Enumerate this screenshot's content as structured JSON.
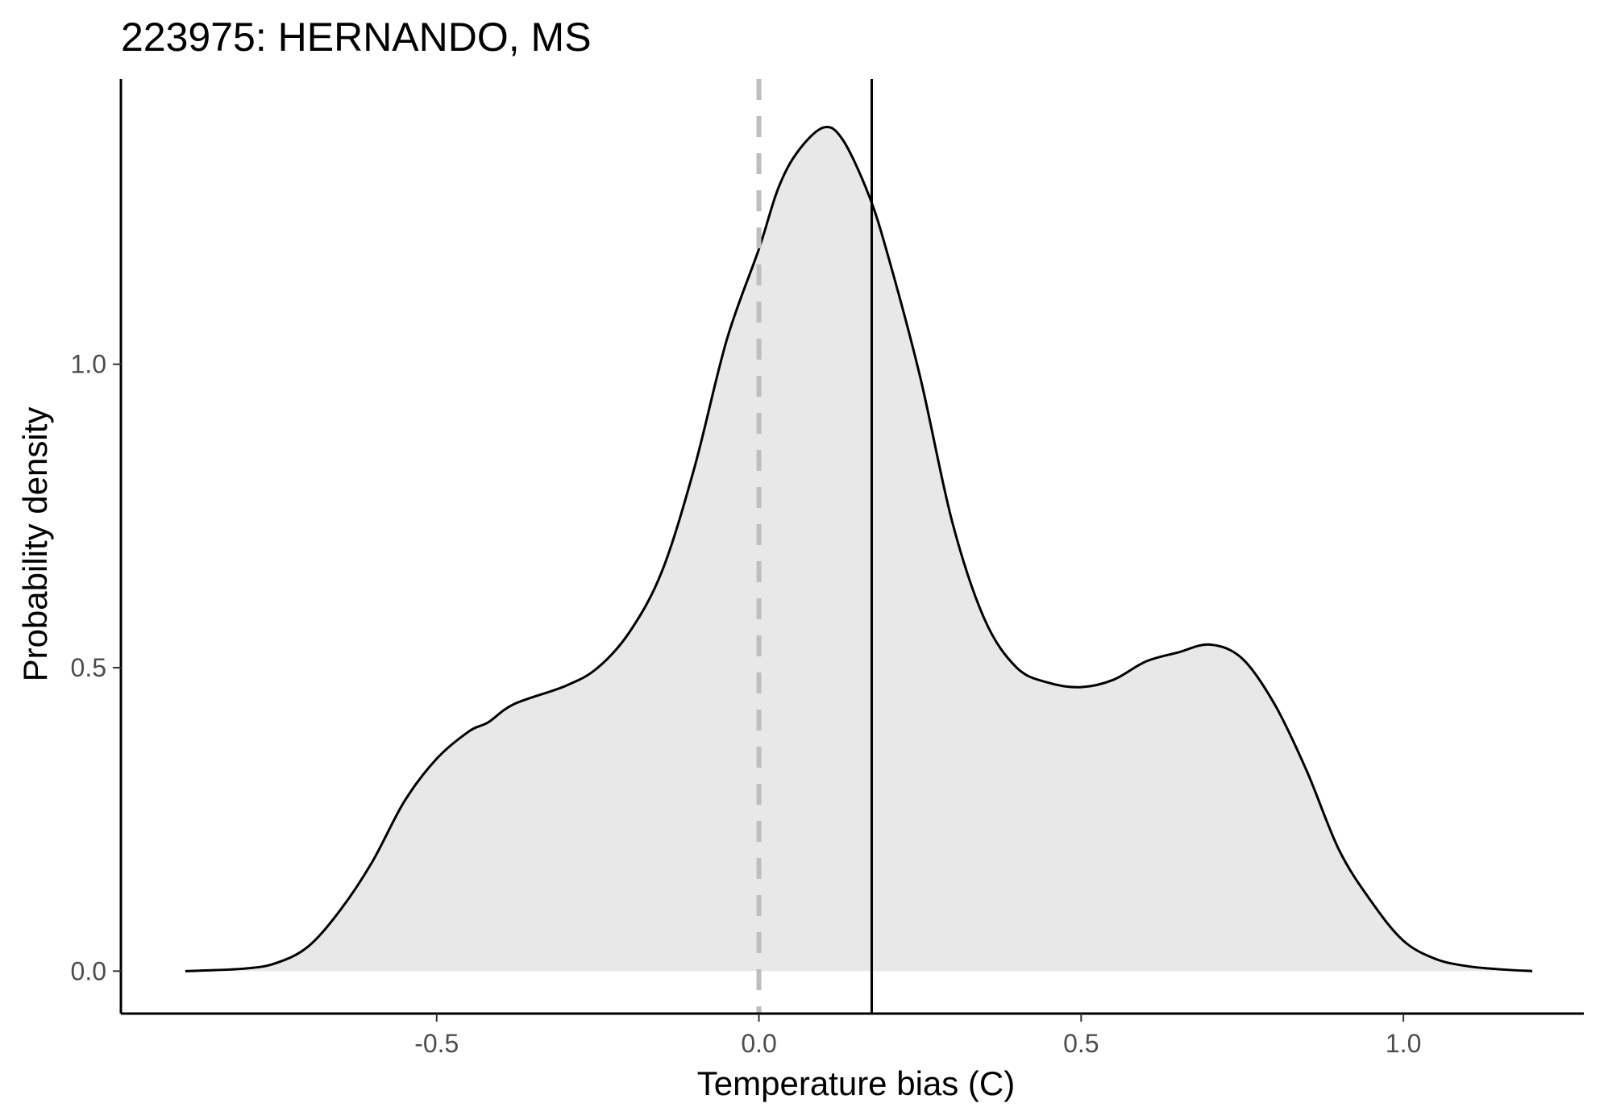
{
  "chart_data": {
    "type": "area",
    "title": "223975: HERNANDO, MS",
    "xlabel": "Temperature bias (C)",
    "ylabel": "Probability density",
    "xlim": [
      -0.99,
      1.28
    ],
    "ylim": [
      -0.07,
      1.47
    ],
    "x_ticks": [
      -0.5,
      0.0,
      0.5,
      1.0
    ],
    "x_tick_labels": [
      "-0.5",
      "0.0",
      "0.5",
      "1.0"
    ],
    "y_ticks": [
      0.0,
      0.5,
      1.0
    ],
    "y_tick_labels": [
      "0.0",
      "0.5",
      "1.0"
    ],
    "grid": false,
    "legend": "none",
    "colors": {
      "fill": "#e8e8e8",
      "curve": "#000000",
      "reference_line": "#bebebe",
      "mean_line": "#000000",
      "axis": "#000000"
    },
    "series": [
      {
        "x": [
          -0.89,
          -0.8,
          -0.75,
          -0.7,
          -0.65,
          -0.6,
          -0.55,
          -0.5,
          -0.45,
          -0.42,
          -0.38,
          -0.3,
          -0.25,
          -0.2,
          -0.15,
          -0.1,
          -0.05,
          0.0,
          0.03,
          0.06,
          0.1,
          0.13,
          0.17,
          0.2,
          0.25,
          0.3,
          0.35,
          0.4,
          0.45,
          0.5,
          0.55,
          0.6,
          0.65,
          0.7,
          0.75,
          0.8,
          0.85,
          0.9,
          0.95,
          1.0,
          1.05,
          1.1,
          1.15,
          1.2
        ],
        "y": [
          0.0,
          0.004,
          0.013,
          0.04,
          0.1,
          0.18,
          0.28,
          0.35,
          0.395,
          0.41,
          0.44,
          0.47,
          0.5,
          0.56,
          0.66,
          0.83,
          1.04,
          1.19,
          1.29,
          1.35,
          1.39,
          1.37,
          1.28,
          1.18,
          0.98,
          0.74,
          0.58,
          0.5,
          0.475,
          0.468,
          0.48,
          0.51,
          0.525,
          0.538,
          0.515,
          0.44,
          0.33,
          0.2,
          0.115,
          0.05,
          0.02,
          0.008,
          0.003,
          0.0
        ]
      }
    ],
    "reference_line_x": 0.0,
    "mean_line_x": 0.175
  }
}
